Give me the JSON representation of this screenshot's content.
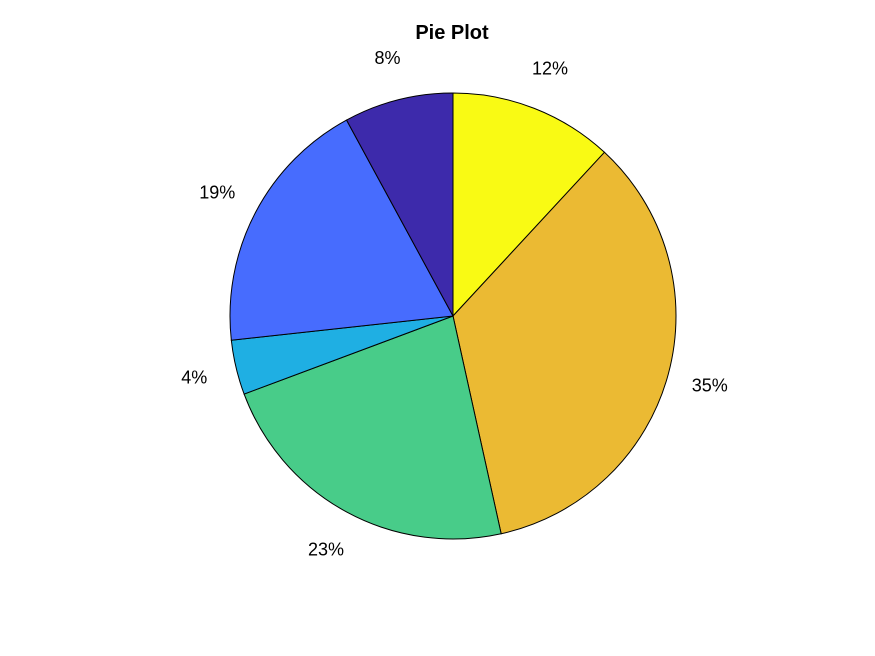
{
  "chart_data": {
    "type": "pie",
    "title": "Pie Plot",
    "slices": [
      {
        "label": "12%",
        "value": 12,
        "color": "#F9FA14"
      },
      {
        "label": "35%",
        "value": 35,
        "color": "#EBBA33"
      },
      {
        "label": "23%",
        "value": 23,
        "color": "#48CC89"
      },
      {
        "label": "4%",
        "value": 4,
        "color": "#1FAFE3"
      },
      {
        "label": "19%",
        "value": 19,
        "color": "#476CFE"
      },
      {
        "label": "8%",
        "value": 8,
        "color": "#3D2AAB"
      }
    ],
    "start_angle_deg": 90,
    "direction": "clockwise"
  }
}
